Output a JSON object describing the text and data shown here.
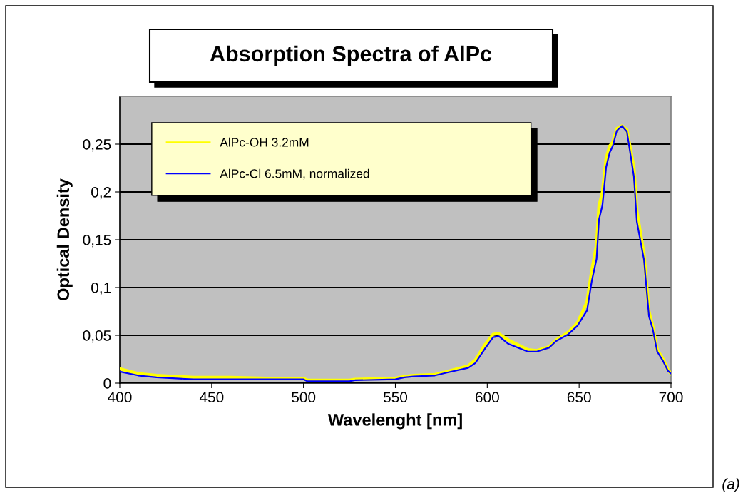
{
  "chart_data": {
    "type": "line",
    "title": "Absorption Spectra of AlPc",
    "xlabel": "Wavelenght [nm]",
    "ylabel": "Optical Density",
    "series": [
      {
        "name": "AlPc-OH 3.2mM",
        "color": "#ffff00",
        "x": [
          400,
          410,
          420,
          440,
          460,
          480,
          500,
          502,
          525,
          528,
          550,
          555,
          560,
          571.5,
          578,
          589.6,
          593.5,
          598.7,
          603.2,
          606,
          611.5,
          622,
          627,
          633.6,
          637.5,
          644,
          649.1,
          654.3,
          656.9,
          659.5,
          660.8,
          662.7,
          664.7,
          666.6,
          668.3,
          670.5,
          673.3,
          676,
          678.2,
          679.8,
          681.4,
          685.3,
          688,
          690,
          692.5,
          695.7,
          698.3,
          700
        ],
        "values": [
          0.015,
          0.01,
          0.008,
          0.006,
          0.006,
          0.005,
          0.005,
          0.003,
          0.003,
          0.004,
          0.005,
          0.007,
          0.008,
          0.009,
          0.012,
          0.018,
          0.024,
          0.04,
          0.051,
          0.052,
          0.045,
          0.035,
          0.034,
          0.038,
          0.045,
          0.053,
          0.063,
          0.085,
          0.118,
          0.145,
          0.185,
          0.2,
          0.235,
          0.248,
          0.252,
          0.266,
          0.269,
          0.265,
          0.242,
          0.225,
          0.18,
          0.135,
          0.075,
          0.06,
          0.035,
          0.025,
          0.014,
          0.01
        ]
      },
      {
        "name": "AlPc-Cl 6.5mM, normalized",
        "color": "#0000ff",
        "x": [
          400,
          410,
          420,
          440,
          460,
          480,
          500,
          502,
          525,
          528,
          550,
          555,
          560,
          571.5,
          578,
          589.6,
          593.5,
          598.7,
          603.2,
          606.4,
          611.5,
          622,
          627,
          633.6,
          637.5,
          644,
          649.1,
          654.3,
          656.9,
          659.5,
          660.8,
          662.7,
          664.7,
          666.6,
          668.3,
          670.5,
          673.3,
          676,
          678.2,
          679.8,
          681.4,
          685.3,
          688,
          690,
          692.5,
          695.7,
          698.3,
          700
        ],
        "values": [
          0.012,
          0.008,
          0.006,
          0.004,
          0.004,
          0.004,
          0.004,
          0.002,
          0.002,
          0.003,
          0.004,
          0.006,
          0.007,
          0.008,
          0.011,
          0.016,
          0.021,
          0.036,
          0.048,
          0.049,
          0.041,
          0.033,
          0.033,
          0.037,
          0.044,
          0.051,
          0.06,
          0.076,
          0.107,
          0.13,
          0.171,
          0.186,
          0.226,
          0.241,
          0.248,
          0.264,
          0.269,
          0.263,
          0.236,
          0.216,
          0.169,
          0.129,
          0.07,
          0.057,
          0.033,
          0.023,
          0.013,
          0.01
        ]
      }
    ],
    "xlim": [
      400,
      700
    ],
    "xticks": [
      400,
      450,
      500,
      550,
      600,
      650,
      700
    ],
    "ylim": [
      0,
      0.3
    ],
    "yticks": [
      {
        "value": 0,
        "label": "0"
      },
      {
        "value": 0.05,
        "label": "0,05"
      },
      {
        "value": 0.1,
        "label": "0,1"
      },
      {
        "value": 0.15,
        "label": "0,15"
      },
      {
        "value": 0.2,
        "label": "0,2"
      },
      {
        "value": 0.25,
        "label": "0,25"
      }
    ],
    "grid": "y",
    "legend": "top left",
    "marker": "none",
    "line_style": "solid",
    "annotations": [
      "(a)"
    ]
  }
}
